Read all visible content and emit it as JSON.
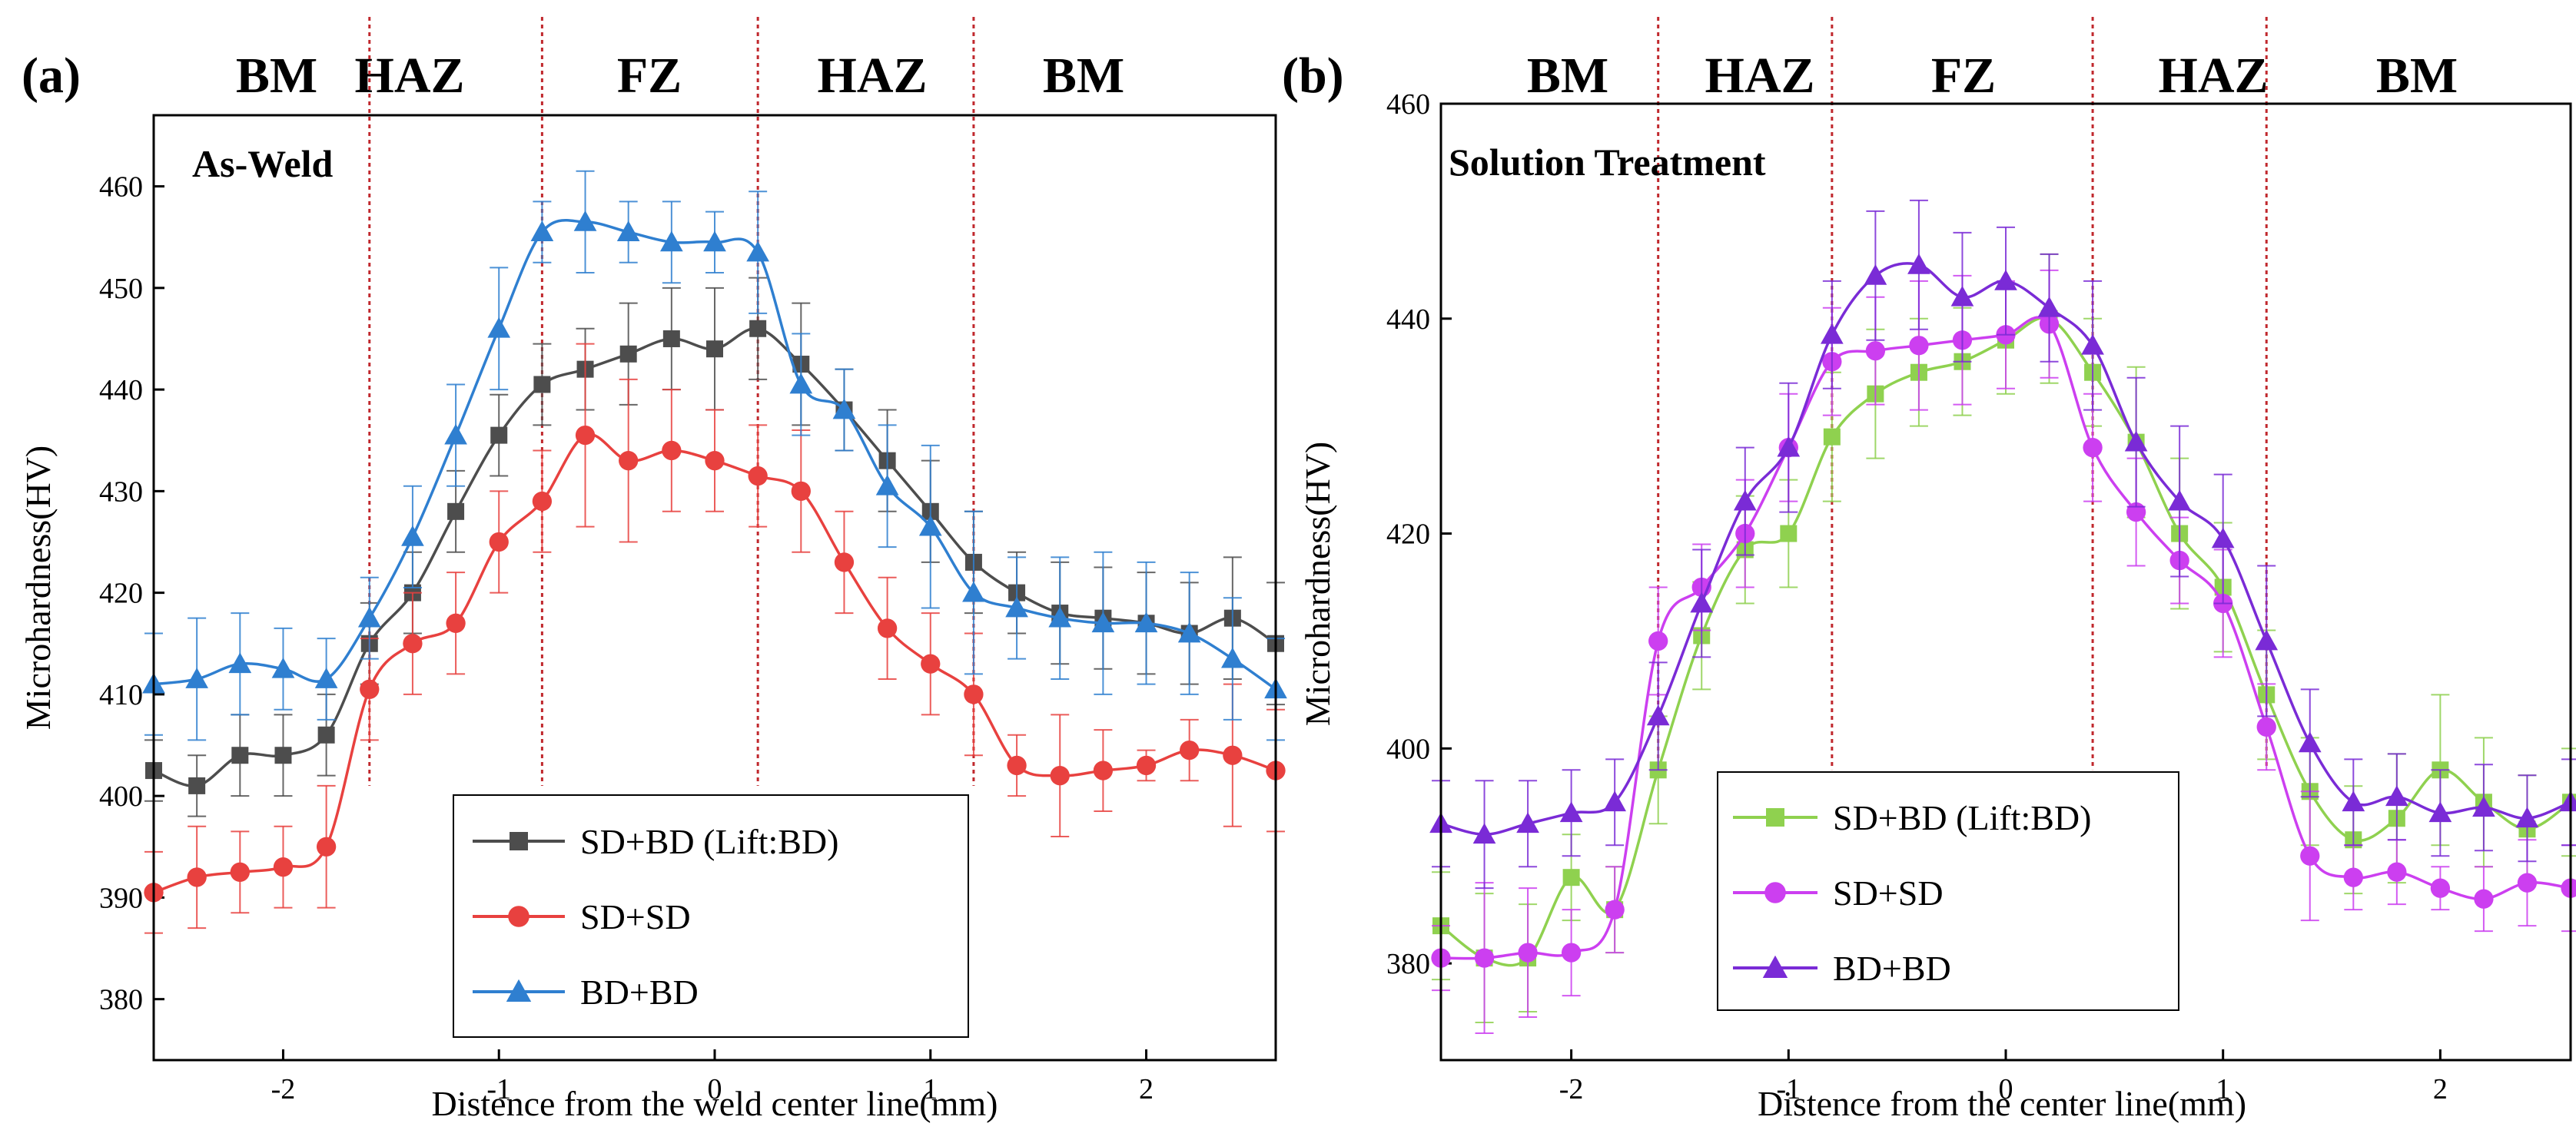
{
  "chart_data": [
    {
      "panel": "(a)",
      "type": "line",
      "title": "As-Weld",
      "xlabel": "Distence from the weld center line(mm)",
      "ylabel": "Microhardness(HV)",
      "xlim": [
        -2.6,
        2.6
      ],
      "ylim": [
        374,
        467
      ],
      "xticks": [
        -2,
        -1,
        0,
        1,
        2
      ],
      "yticks": [
        380,
        390,
        400,
        410,
        420,
        430,
        440,
        450,
        460
      ],
      "xtick_labels": [
        "-2",
        "-1",
        "0",
        "1",
        "2"
      ],
      "ytick_labels": [
        "380",
        "390",
        "400",
        "410",
        "420",
        "430",
        "440",
        "450",
        "460"
      ],
      "zones": [
        "BM",
        "HAZ",
        "FZ",
        "HAZ",
        "BM"
      ],
      "zone_centers": [
        -2.0,
        -1.2,
        -0.3,
        0.7,
        1.8
      ],
      "boundaries": [
        -1.6,
        -0.8,
        0.2,
        1.2
      ],
      "x": [
        -2.6,
        -2.4,
        -2.2,
        -2.0,
        -1.8,
        -1.6,
        -1.4,
        -1.2,
        -1.0,
        -0.8,
        -0.6,
        -0.4,
        -0.2,
        0.0,
        0.2,
        0.4,
        0.6,
        0.8,
        1.0,
        1.2,
        1.4,
        1.6,
        1.8,
        2.0,
        2.2,
        2.4,
        2.6
      ],
      "legend_position": "bottom-center",
      "series": [
        {
          "name": "SD+BD (Lift:BD)",
          "color": "#4d4d4d",
          "marker": "square",
          "values": [
            402.5,
            401,
            404,
            404,
            406,
            415,
            420,
            428,
            435.5,
            440.5,
            442,
            443.5,
            445,
            444,
            446,
            442.5,
            438,
            433,
            428,
            423,
            420,
            418,
            417.5,
            417,
            416,
            417.5,
            415
          ],
          "errors": [
            3,
            3,
            4,
            4,
            4,
            4,
            4,
            4,
            4,
            4,
            4,
            5,
            5,
            6,
            5,
            6,
            4,
            5,
            5,
            5,
            4,
            5,
            5,
            5,
            5,
            6,
            6
          ]
        },
        {
          "name": "SD+SD",
          "color": "#e8413f",
          "marker": "circle",
          "values": [
            390.5,
            392,
            392.5,
            393,
            395,
            410.5,
            415,
            417,
            425,
            429,
            435.5,
            433,
            434,
            433,
            431.5,
            430,
            423,
            416.5,
            413,
            410,
            403,
            402,
            402.5,
            403,
            404.5,
            404,
            402.5
          ],
          "errors": [
            4,
            5,
            4,
            4,
            6,
            5,
            5,
            5,
            5,
            5,
            9,
            8,
            6,
            5,
            5,
            6,
            5,
            5,
            5,
            6,
            3,
            6,
            4,
            1.5,
            3,
            7,
            6
          ]
        },
        {
          "name": "BD+BD",
          "color": "#2f7fd0",
          "marker": "triangle",
          "values": [
            411,
            411.5,
            413,
            412.5,
            411.5,
            417.5,
            425.5,
            435.5,
            446,
            455.5,
            456.5,
            455.5,
            454.5,
            454.5,
            453.5,
            440.5,
            438,
            430.5,
            426.5,
            420,
            418.5,
            417.5,
            417,
            417,
            416,
            413.5,
            410.5
          ],
          "errors": [
            5,
            6,
            5,
            4,
            4,
            4,
            5,
            5,
            6,
            3,
            5,
            3,
            4,
            3,
            6,
            5,
            4,
            6,
            8,
            8,
            5,
            6,
            7,
            6,
            6,
            6,
            5
          ]
        }
      ]
    },
    {
      "panel": "(b)",
      "type": "line",
      "title": "Solution Treatment",
      "xlabel": "Distence from the center line(mm)",
      "ylabel": "Microhardness(HV)",
      "xlim": [
        -2.6,
        2.6
      ],
      "ylim": [
        371,
        460
      ],
      "xticks": [
        -2,
        -1,
        0,
        1,
        2
      ],
      "yticks": [
        380,
        400,
        420,
        440,
        460
      ],
      "xtick_labels": [
        "-2",
        "-1",
        "0",
        "1",
        "2"
      ],
      "ytick_labels": [
        "380",
        "400",
        "420",
        "440",
        "460"
      ],
      "zones": [
        "BM",
        "HAZ",
        "FZ",
        "HAZ",
        "BM"
      ],
      "zone_centers": [
        -2.1,
        -1.2,
        -0.15,
        1.0,
        2.0
      ],
      "boundaries": [
        -1.6,
        -0.8,
        0.4,
        1.2
      ],
      "x": [
        -2.6,
        -2.4,
        -2.2,
        -2.0,
        -1.8,
        -1.6,
        -1.4,
        -1.2,
        -1.0,
        -0.8,
        -0.6,
        -0.4,
        -0.2,
        0.0,
        0.2,
        0.4,
        0.6,
        0.8,
        1.0,
        1.2,
        1.4,
        1.6,
        1.8,
        2.0,
        2.2,
        2.4,
        2.6
      ],
      "legend_position": "bottom-left",
      "series": [
        {
          "name": "SD+BD (Lift:BD)",
          "color": "#8fd14f",
          "marker": "square",
          "values": [
            383.5,
            380.5,
            380.5,
            388,
            385,
            398,
            410.5,
            418.5,
            420,
            429,
            433,
            435,
            436,
            438,
            440,
            435,
            428.5,
            420,
            415,
            405,
            396,
            391.5,
            393.5,
            398,
            395,
            392.5,
            395
          ],
          "errors": [
            5,
            6,
            5,
            4,
            4,
            5,
            5,
            5,
            5,
            6,
            6,
            5,
            5,
            5,
            6,
            5,
            7,
            7,
            6,
            6,
            5,
            5,
            6,
            7,
            6,
            5,
            5
          ]
        },
        {
          "name": "SD+SD",
          "color": "#cc3ff0",
          "marker": "circle",
          "values": [
            380.5,
            380.5,
            381,
            381,
            385,
            410,
            415,
            420,
            428,
            436,
            437,
            437.5,
            438,
            438.5,
            439.5,
            428,
            422,
            417.5,
            413.5,
            402,
            390,
            388,
            388.5,
            387,
            386,
            387.5,
            387
          ],
          "errors": [
            3,
            7,
            6,
            4,
            4,
            5,
            4,
            5,
            5,
            5,
            5,
            6,
            6,
            5,
            5,
            5,
            5,
            4,
            5,
            4,
            6,
            3,
            3,
            2,
            3,
            4,
            4
          ]
        },
        {
          "name": "BD+BD",
          "color": "#7a2bd6",
          "marker": "triangle",
          "values": [
            393,
            392,
            393,
            394,
            395,
            403,
            413.5,
            423,
            428,
            438.5,
            444,
            445,
            442,
            443.5,
            441,
            437.5,
            428.5,
            423,
            419.5,
            410,
            400.5,
            395,
            395.5,
            394,
            394.5,
            393.5,
            395
          ],
          "errors": [
            4,
            5,
            4,
            4,
            4,
            5,
            5,
            5,
            6,
            5,
            6,
            6,
            6,
            5,
            5,
            6,
            6,
            7,
            6,
            7,
            5,
            4,
            4,
            4,
            4,
            4,
            4
          ]
        }
      ]
    }
  ]
}
